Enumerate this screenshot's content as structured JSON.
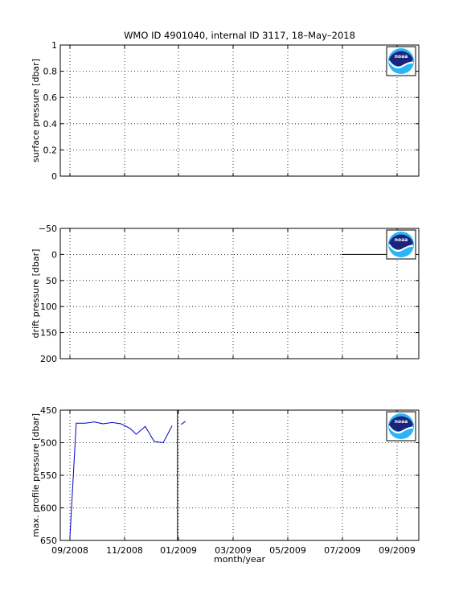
{
  "title": "WMO ID 4901040, internal ID 3117, 18–May–2018",
  "xlabel": "month/year",
  "x_ticks": [
    "09/2008",
    "11/2008",
    "01/2009",
    "03/2009",
    "05/2009",
    "07/2009",
    "09/2009"
  ],
  "logo": {
    "text": "noaa",
    "colors": {
      "dark": "#1a237e",
      "light": "#29b6f6"
    }
  },
  "chart_data": [
    {
      "type": "line",
      "ylabel": "surface pressure [dbar]",
      "ylim": [
        0,
        1
      ],
      "y_reversed": false,
      "y_ticks": [
        "0",
        "0.2",
        "0.4",
        "0.6",
        "0.8",
        "1"
      ],
      "grid": true,
      "series": []
    },
    {
      "type": "line",
      "ylabel": "drift pressure [dbar]",
      "ylim": [
        -50,
        200
      ],
      "y_reversed": true,
      "y_ticks": [
        "−50",
        "0",
        "50",
        "100",
        "150",
        "200"
      ],
      "grid": true,
      "series": [
        {
          "color": "#000000",
          "points": [
            [
              "2009-07-01",
              0
            ],
            [
              "2009-08-31",
              0
            ]
          ]
        }
      ]
    },
    {
      "type": "line",
      "ylabel": "max. profile pressure [dbar]",
      "ylim": [
        450,
        650
      ],
      "y_reversed": true,
      "y_ticks": [
        "450",
        "500",
        "550",
        "600",
        "650"
      ],
      "grid": true,
      "series": [
        {
          "color": "#0000cc",
          "points": [
            [
              "2008-09-01",
              645
            ],
            [
              "2008-09-08",
              470
            ],
            [
              "2008-09-18",
              470
            ],
            [
              "2008-09-28",
              468
            ],
            [
              "2008-10-08",
              471
            ],
            [
              "2008-10-18",
              469
            ],
            [
              "2008-10-28",
              471
            ],
            [
              "2008-11-07",
              478
            ],
            [
              "2008-11-14",
              487
            ],
            [
              "2008-11-24",
              475
            ],
            [
              "2008-12-04",
              498
            ],
            [
              "2008-12-14",
              500
            ],
            [
              "2008-12-24",
              474
            ]
          ]
        },
        {
          "color": "#0000cc",
          "points": [
            [
              "2009-01-03",
              472
            ],
            [
              "2009-01-08",
              467
            ]
          ]
        },
        {
          "color": "#000000",
          "points": [
            [
              "2008-12-30",
              450
            ],
            [
              "2008-12-30",
              650
            ]
          ]
        }
      ]
    }
  ]
}
